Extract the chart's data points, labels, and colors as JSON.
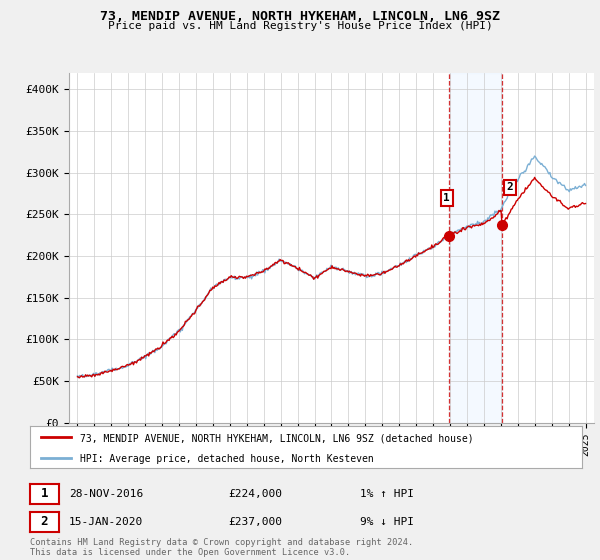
{
  "title": "73, MENDIP AVENUE, NORTH HYKEHAM, LINCOLN, LN6 9SZ",
  "subtitle": "Price paid vs. HM Land Registry's House Price Index (HPI)",
  "ylabel_ticks": [
    "£0",
    "£50K",
    "£100K",
    "£150K",
    "£200K",
    "£250K",
    "£300K",
    "£350K",
    "£400K"
  ],
  "ytick_values": [
    0,
    50000,
    100000,
    150000,
    200000,
    250000,
    300000,
    350000,
    400000
  ],
  "ylim": [
    0,
    420000
  ],
  "xlim_start": 1994.5,
  "xlim_end": 2025.5,
  "sale1_date": 2016.91,
  "sale1_price": 224000,
  "sale2_date": 2020.04,
  "sale2_price": 237000,
  "line_color_red": "#cc0000",
  "line_color_blue": "#7bafd4",
  "shade_color": "#ddeeff",
  "vline_color": "#cc0000",
  "legend_label_red": "73, MENDIP AVENUE, NORTH HYKEHAM, LINCOLN, LN6 9SZ (detached house)",
  "legend_label_blue": "HPI: Average price, detached house, North Kesteven",
  "footnote": "Contains HM Land Registry data © Crown copyright and database right 2024.\nThis data is licensed under the Open Government Licence v3.0.",
  "bg_color": "#f0f0f0",
  "plot_bg": "#ffffff",
  "shade_x1": 2016.91,
  "shade_x2": 2020.04,
  "hpi_points": [
    [
      1995,
      55000
    ],
    [
      1996,
      58000
    ],
    [
      1997,
      63000
    ],
    [
      1998,
      70000
    ],
    [
      1999,
      80000
    ],
    [
      2000,
      93000
    ],
    [
      2001,
      110000
    ],
    [
      2002,
      135000
    ],
    [
      2003,
      162000
    ],
    [
      2004,
      175000
    ],
    [
      2005,
      175000
    ],
    [
      2006,
      182000
    ],
    [
      2007,
      196000
    ],
    [
      2008,
      186000
    ],
    [
      2009,
      174000
    ],
    [
      2010,
      188000
    ],
    [
      2011,
      182000
    ],
    [
      2012,
      177000
    ],
    [
      2013,
      180000
    ],
    [
      2014,
      190000
    ],
    [
      2015,
      202000
    ],
    [
      2016,
      212000
    ],
    [
      2017,
      228000
    ],
    [
      2018,
      238000
    ],
    [
      2019,
      243000
    ],
    [
      2020,
      258000
    ],
    [
      2021,
      295000
    ],
    [
      2022,
      322000
    ],
    [
      2023,
      298000
    ],
    [
      2024,
      282000
    ],
    [
      2025,
      288000
    ]
  ]
}
